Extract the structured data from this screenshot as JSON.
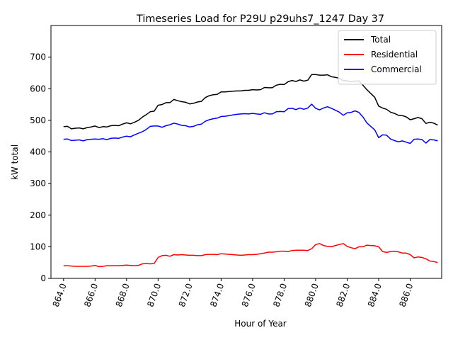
{
  "chart_data": {
    "type": "line",
    "title": "Timeseries Load for P29U p29uhs7_1247  Day 37",
    "xlabel": "Hour of Year",
    "ylabel": "kW total",
    "xlim": [
      863.2,
      888.0
    ],
    "ylim": [
      0,
      800
    ],
    "xticks": [
      864,
      866,
      868,
      870,
      872,
      874,
      876,
      878,
      880,
      882,
      884,
      886
    ],
    "xtick_labels": [
      "864.0",
      "866.0",
      "868.0",
      "870.0",
      "872.0",
      "874.0",
      "876.0",
      "878.0",
      "880.0",
      "882.0",
      "884.0",
      "886.0"
    ],
    "yticks": [
      0,
      100,
      200,
      300,
      400,
      500,
      600,
      700
    ],
    "ytick_labels": [
      "0",
      "100",
      "200",
      "300",
      "400",
      "500",
      "600",
      "700"
    ],
    "grid": false,
    "legend_position": "top-right",
    "x": [
      864.0,
      864.25,
      864.5,
      864.75,
      865.0,
      865.25,
      865.5,
      865.75,
      866.0,
      866.25,
      866.5,
      866.75,
      867.0,
      867.25,
      867.5,
      867.75,
      868.0,
      868.25,
      868.5,
      868.75,
      869.0,
      869.25,
      869.5,
      869.75,
      870.0,
      870.25,
      870.5,
      870.75,
      871.0,
      871.25,
      871.5,
      871.75,
      872.0,
      872.25,
      872.5,
      872.75,
      873.0,
      873.25,
      873.5,
      873.75,
      874.0,
      874.25,
      874.5,
      874.75,
      875.0,
      875.25,
      875.5,
      875.75,
      876.0,
      876.25,
      876.5,
      876.75,
      877.0,
      877.25,
      877.5,
      877.75,
      878.0,
      878.25,
      878.5,
      878.75,
      879.0,
      879.25,
      879.5,
      879.75,
      880.0,
      880.25,
      880.5,
      880.75,
      881.0,
      881.25,
      881.5,
      881.75,
      882.0,
      882.25,
      882.5,
      882.75,
      883.0,
      883.25,
      883.5,
      883.75,
      884.0,
      884.25,
      884.5,
      884.75,
      885.0,
      885.25,
      885.5,
      885.75,
      886.0,
      886.25,
      886.5,
      886.75,
      887.0,
      887.25,
      887.5,
      887.75
    ],
    "series": [
      {
        "name": "Total",
        "color": "#000000",
        "values": [
          480,
          481,
          473,
          475,
          476,
          473,
          477,
          479,
          482,
          477,
          480,
          479,
          483,
          484,
          483,
          488,
          492,
          489,
          494,
          500,
          510,
          518,
          527,
          529,
          548,
          550,
          556,
          556,
          566,
          562,
          559,
          557,
          552,
          554,
          558,
          560,
          572,
          578,
          581,
          582,
          590,
          590,
          591,
          592,
          593,
          593,
          595,
          595,
          597,
          596,
          597,
          604,
          603,
          603,
          611,
          614,
          613,
          622,
          626,
          623,
          628,
          624,
          627,
          645,
          645,
          643,
          643,
          644,
          638,
          636,
          633,
          626,
          625,
          622,
          624,
          625,
          611,
          597,
          585,
          573,
          545,
          539,
          535,
          526,
          522,
          516,
          515,
          511,
          502,
          505,
          509,
          505,
          490,
          494,
          491,
          485
        ]
      },
      {
        "name": "Residential",
        "color": "#ff0000",
        "values": [
          40,
          40,
          39,
          38,
          38,
          38,
          38,
          39,
          41,
          37,
          38,
          40,
          40,
          40,
          40,
          41,
          42,
          41,
          40,
          41,
          46,
          47,
          46,
          47,
          66,
          72,
          73,
          70,
          75,
          74,
          75,
          74,
          73,
          73,
          72,
          72,
          75,
          76,
          76,
          75,
          78,
          77,
          76,
          75,
          74,
          73,
          74,
          75,
          75,
          76,
          78,
          80,
          83,
          83,
          84,
          86,
          86,
          85,
          88,
          89,
          89,
          89,
          88,
          94,
          107,
          110,
          104,
          101,
          100,
          104,
          107,
          110,
          101,
          97,
          94,
          100,
          100,
          105,
          104,
          103,
          100,
          85,
          82,
          85,
          86,
          84,
          80,
          80,
          75,
          65,
          68,
          66,
          62,
          55,
          53,
          50
        ]
      },
      {
        "name": "Commercial",
        "color": "#0000ff",
        "values": [
          440,
          441,
          436,
          437,
          438,
          435,
          439,
          440,
          441,
          440,
          442,
          439,
          443,
          444,
          443,
          447,
          450,
          448,
          454,
          459,
          464,
          471,
          481,
          482,
          482,
          478,
          483,
          486,
          491,
          488,
          484,
          483,
          479,
          481,
          486,
          488,
          497,
          502,
          505,
          507,
          512,
          513,
          515,
          517,
          519,
          520,
          521,
          520,
          522,
          520,
          519,
          524,
          520,
          520,
          527,
          528,
          527,
          537,
          538,
          534,
          539,
          535,
          539,
          551,
          538,
          533,
          539,
          543,
          538,
          532,
          526,
          516,
          524,
          525,
          530,
          525,
          511,
          492,
          481,
          470,
          445,
          454,
          453,
          441,
          436,
          432,
          435,
          431,
          427,
          440,
          441,
          439,
          428,
          439,
          438,
          435
        ]
      }
    ]
  }
}
